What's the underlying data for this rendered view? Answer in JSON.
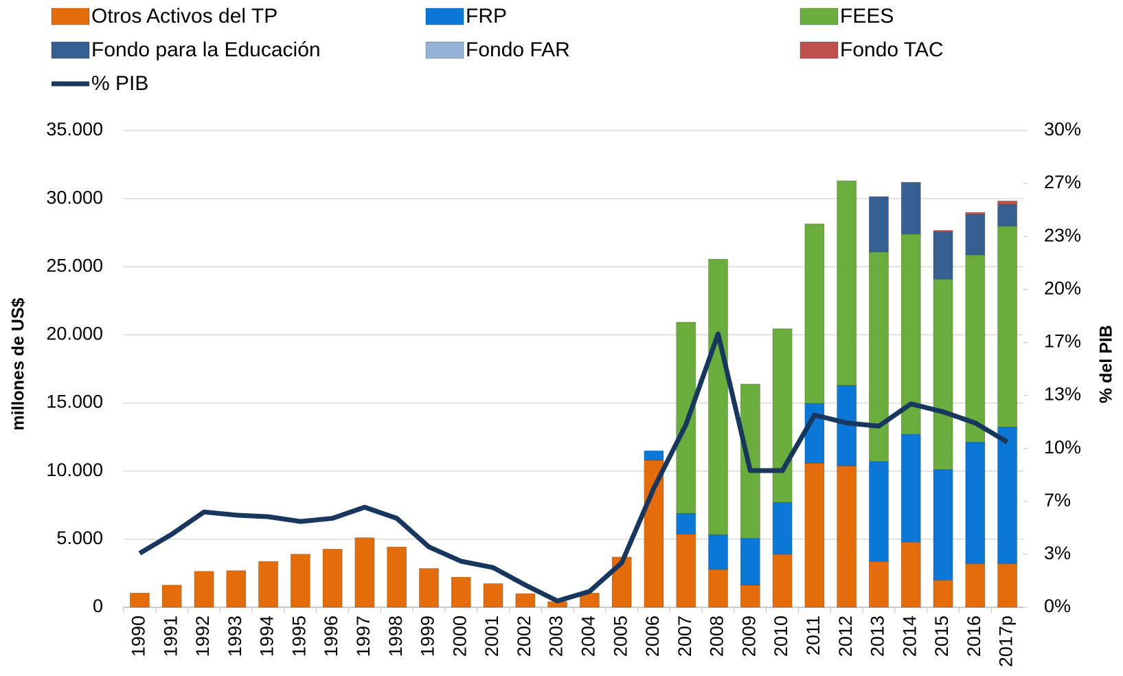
{
  "chart_data": {
    "type": "bar",
    "categories": [
      "1990",
      "1991",
      "1992",
      "1993",
      "1994",
      "1995",
      "1996",
      "1997",
      "1998",
      "1999",
      "2000",
      "2001",
      "2002",
      "2003",
      "2004",
      "2005",
      "2006",
      "2007",
      "2008",
      "2009",
      "2010",
      "2011",
      "2012",
      "2013",
      "2014",
      "2015",
      "2016",
      "2017p"
    ],
    "stacked": true,
    "series": [
      {
        "name": "Otros Activos del TP",
        "color": "#e46c0a",
        "values": [
          1050,
          1630,
          2640,
          2690,
          3370,
          3900,
          4270,
          5110,
          4430,
          2850,
          2210,
          1740,
          1000,
          420,
          1050,
          3690,
          10800,
          5380,
          2790,
          1630,
          3900,
          10590,
          10380,
          3370,
          4800,
          2000,
          3210,
          3210
        ]
      },
      {
        "name": "FRP",
        "color": "#0b78d8",
        "values": [
          null,
          null,
          null,
          null,
          null,
          null,
          null,
          null,
          null,
          null,
          null,
          null,
          null,
          null,
          null,
          null,
          690,
          1520,
          2530,
          3430,
          3800,
          4380,
          5910,
          7330,
          7900,
          8120,
          8910,
          10020
        ]
      },
      {
        "name": "FEES",
        "color": "#6aad3c",
        "values": [
          null,
          null,
          null,
          null,
          null,
          null,
          null,
          null,
          null,
          null,
          null,
          null,
          null,
          null,
          null,
          null,
          null,
          14030,
          20240,
          11330,
          12750,
          13180,
          15020,
          15390,
          14710,
          13970,
          13760,
          14760
        ]
      },
      {
        "name": "Fondo para la Educación",
        "color": "#376092",
        "values": [
          null,
          null,
          null,
          null,
          null,
          null,
          null,
          null,
          null,
          null,
          null,
          null,
          null,
          null,
          null,
          null,
          null,
          null,
          null,
          null,
          null,
          null,
          null,
          4060,
          3790,
          3480,
          2950,
          1580
        ]
      },
      {
        "name": "Fondo FAR",
        "color": "#95b3d7",
        "values": [
          null,
          null,
          null,
          null,
          null,
          null,
          null,
          null,
          null,
          null,
          null,
          null,
          null,
          null,
          null,
          null,
          null,
          null,
          null,
          null,
          null,
          null,
          null,
          null,
          null,
          null,
          null,
          null
        ]
      },
      {
        "name": "Fondo TAC",
        "color": "#c0504d",
        "values": [
          null,
          null,
          null,
          null,
          null,
          null,
          null,
          null,
          null,
          null,
          null,
          null,
          null,
          null,
          null,
          null,
          null,
          null,
          null,
          null,
          null,
          null,
          null,
          null,
          null,
          100,
          160,
          260
        ]
      },
      {
        "name": "% PIB",
        "color": "#17375e",
        "type": "line",
        "axis": "y2",
        "values": [
          3.4,
          4.6,
          6.0,
          5.8,
          5.7,
          5.4,
          5.6,
          6.3,
          5.6,
          3.8,
          2.9,
          2.5,
          1.4,
          0.4,
          1.0,
          2.8,
          7.5,
          11.5,
          17.2,
          8.6,
          8.6,
          12.1,
          11.6,
          11.4,
          12.8,
          12.3,
          11.6,
          10.4
        ]
      }
    ],
    "ylabel": "millones de US$",
    "y2label": "% del PIB",
    "ylim": [
      0,
      35000
    ],
    "yticks": [
      0,
      {
        "value": 5000,
        "label": "5.000"
      },
      {
        "value": 10000,
        "label": "10.000"
      },
      {
        "value": 15000,
        "label": "15.000"
      },
      {
        "value": 20000,
        "label": "20.000"
      },
      {
        "value": 25000,
        "label": "25.000"
      },
      {
        "value": 30000,
        "label": "30.000"
      },
      {
        "value": 35000,
        "label": "35.000"
      }
    ],
    "y2lim": [
      0,
      30
    ],
    "y2ticks": [
      {
        "value": 0,
        "label": "0%"
      },
      {
        "value": 3.333,
        "label": "3%"
      },
      {
        "value": 6.667,
        "label": "7%"
      },
      {
        "value": 10,
        "label": "10%"
      },
      {
        "value": 13.333,
        "label": "13%"
      },
      {
        "value": 16.667,
        "label": "17%"
      },
      {
        "value": 20,
        "label": "20%"
      },
      {
        "value": 23.333,
        "label": "23%"
      },
      {
        "value": 26.667,
        "label": "27%"
      },
      {
        "value": 30,
        "label": "30%"
      }
    ],
    "grid": true,
    "legend": "top"
  }
}
